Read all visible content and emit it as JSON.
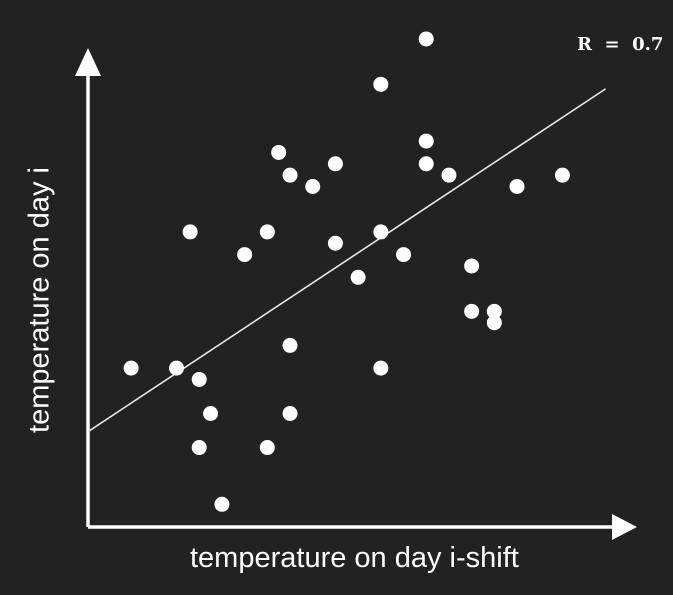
{
  "colors": {
    "background": "#222222",
    "axis": "#ffffff",
    "point": "#ffffff",
    "fit_line": "#e8e8e8"
  },
  "chart_data": {
    "type": "scatter",
    "title": "",
    "xlabel": "temperature on day i-shift",
    "ylabel": "temperature on day i",
    "annotation": "R  =  0.7",
    "grid": false,
    "xlim": [
      0,
      24
    ],
    "ylim": [
      0,
      22
    ],
    "points": [
      {
        "x": 1.9,
        "y": 7.0
      },
      {
        "x": 3.9,
        "y": 7.0
      },
      {
        "x": 4.5,
        "y": 13.0
      },
      {
        "x": 4.9,
        "y": 6.5
      },
      {
        "x": 4.9,
        "y": 3.5
      },
      {
        "x": 5.4,
        "y": 5.0
      },
      {
        "x": 5.9,
        "y": 1.0
      },
      {
        "x": 6.9,
        "y": 12.0
      },
      {
        "x": 7.9,
        "y": 13.0
      },
      {
        "x": 7.9,
        "y": 3.5
      },
      {
        "x": 8.4,
        "y": 16.5
      },
      {
        "x": 8.9,
        "y": 15.5
      },
      {
        "x": 8.9,
        "y": 8.0
      },
      {
        "x": 8.9,
        "y": 5.0
      },
      {
        "x": 9.9,
        "y": 15.0
      },
      {
        "x": 10.9,
        "y": 16.0
      },
      {
        "x": 10.9,
        "y": 12.5
      },
      {
        "x": 11.9,
        "y": 11.0
      },
      {
        "x": 12.9,
        "y": 19.5
      },
      {
        "x": 12.9,
        "y": 13.0
      },
      {
        "x": 12.9,
        "y": 7.0
      },
      {
        "x": 13.9,
        "y": 12.0
      },
      {
        "x": 14.9,
        "y": 21.5
      },
      {
        "x": 14.9,
        "y": 17.0
      },
      {
        "x": 14.9,
        "y": 16.0
      },
      {
        "x": 15.9,
        "y": 15.5
      },
      {
        "x": 16.9,
        "y": 11.5
      },
      {
        "x": 16.9,
        "y": 9.5
      },
      {
        "x": 17.9,
        "y": 9.5
      },
      {
        "x": 17.9,
        "y": 9.0
      },
      {
        "x": 18.9,
        "y": 15.0
      },
      {
        "x": 20.9,
        "y": 15.5
      }
    ],
    "fit_line": {
      "x": [
        0,
        22.8
      ],
      "y": [
        4.2,
        19.3
      ]
    }
  }
}
